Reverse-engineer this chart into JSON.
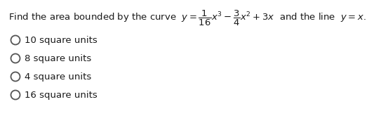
{
  "background_color": "#ffffff",
  "options": [
    "10 square units",
    "8 square units",
    "4 square units",
    "16 square units"
  ],
  "font_size_question": 9.5,
  "font_size_options": 9.5,
  "text_color": "#1a1a1a",
  "circle_color": "#555555",
  "fig_width": 5.26,
  "fig_height": 1.65,
  "dpi": 100
}
